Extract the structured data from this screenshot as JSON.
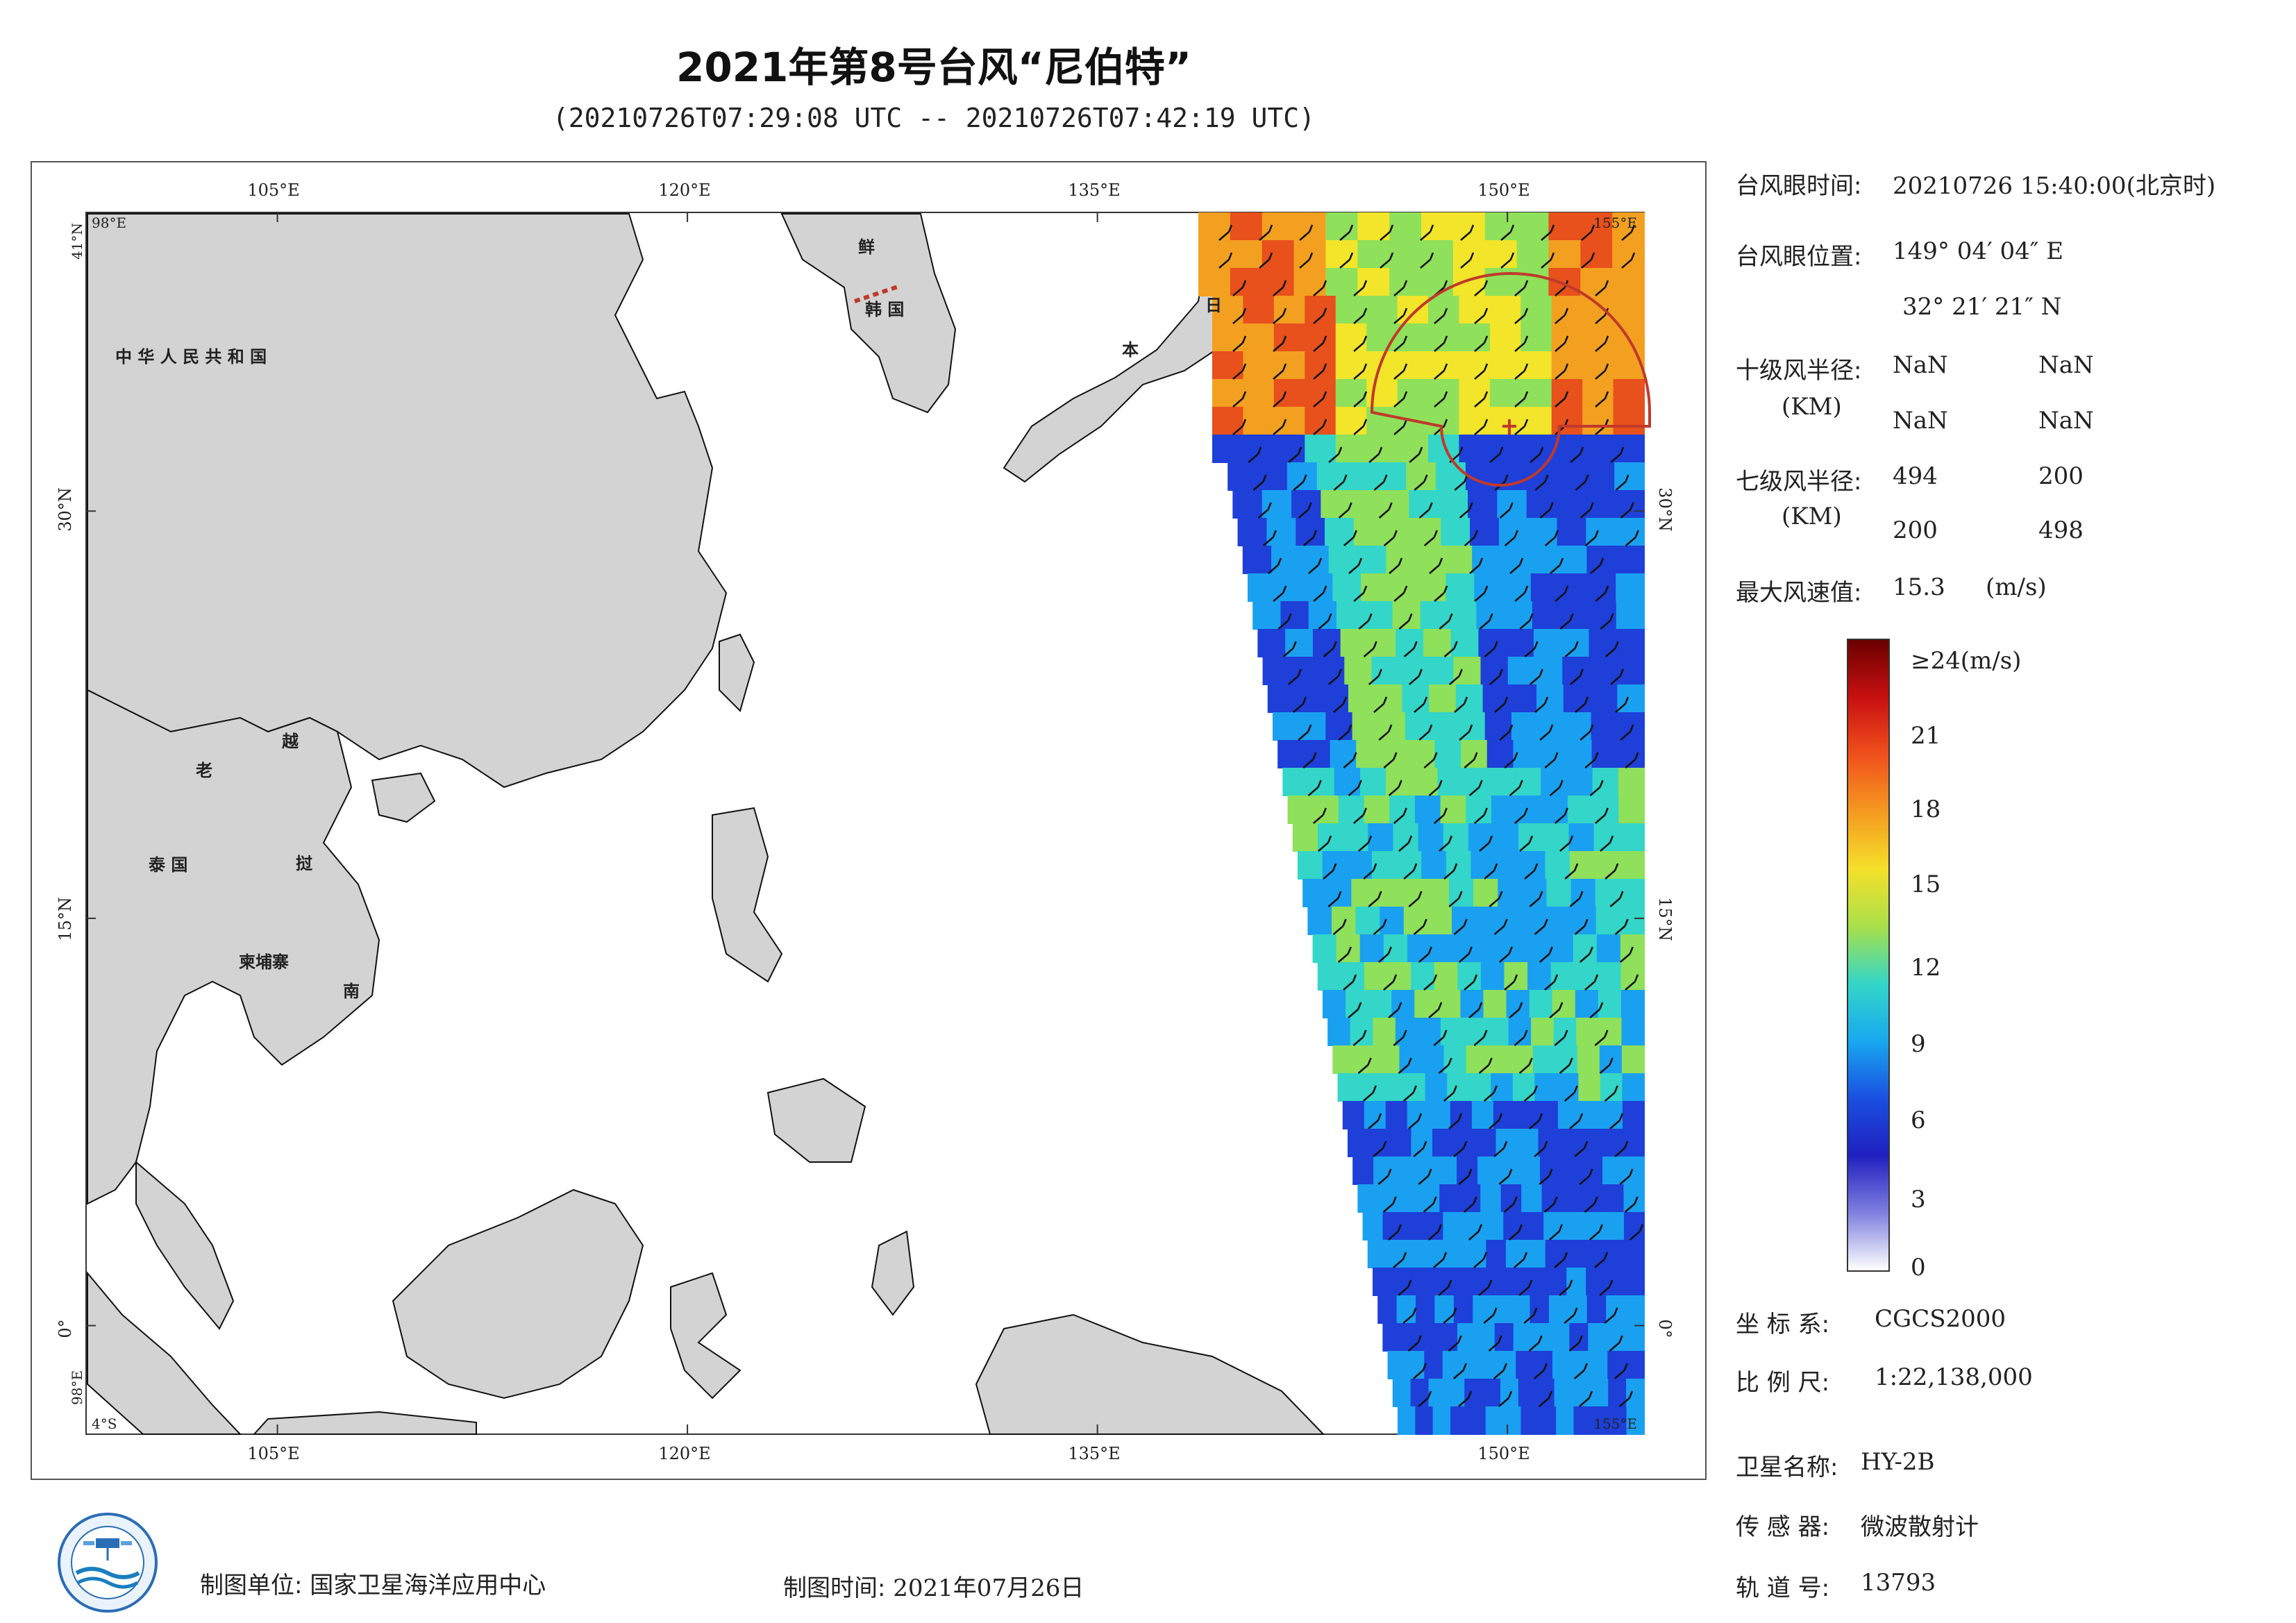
{
  "header": {
    "title": "2021年第8号台风“尼伯特”",
    "subtitle": "(20210726T07:29:08 UTC -- 20210726T07:42:19 UTC)"
  },
  "map": {
    "lon_ticks": [
      "105°E",
      "120°E",
      "135°E",
      "150°E"
    ],
    "lat_ticks": [
      "30°N",
      "15°N",
      "0°"
    ],
    "corner_labels": {
      "top_left_lon": "98°E",
      "top_left_lat": "41°N",
      "top_right_lon": "155°E",
      "bottom_left_lon": "98°E",
      "bottom_left_lat": "4°S",
      "bottom_right_lon": "155°E"
    },
    "country_labels": {
      "china": "中 华 人 民 共 和 国",
      "korea_n": "鲜",
      "korea_s": "韩 国",
      "japan_1": "日",
      "japan_2": "本",
      "laos": "老",
      "vietnam_1": "越",
      "vietnam_2": "挝",
      "vietnam_3": "南",
      "thailand": "泰 国",
      "cambodia": "柬埔寨"
    },
    "lon_range": [
      98,
      155
    ],
    "lat_range": [
      -4,
      41
    ],
    "swath_colors": [
      "#1e3fd8",
      "#1aa0f0",
      "#33d6c8",
      "#8fe05a",
      "#f2e52a",
      "#f3a020",
      "#e8501c"
    ],
    "land_color": "#d3d3d3",
    "typhoon_circle_color": "#c0392b"
  },
  "info": {
    "eye_time_label": "台风眼时间:",
    "eye_time_value": "20210726 15:40:00(北京时)",
    "eye_pos_label": "台风眼位置:",
    "eye_pos_lon": "149° 04′ 04″ E",
    "eye_pos_lat": "32° 21′ 21″ N",
    "r10_label": "十级风半径:",
    "r10_unit": "(KM)",
    "r10_values": [
      "NaN",
      "NaN",
      "NaN",
      "NaN"
    ],
    "r7_label": "七级风半径:",
    "r7_unit": "(KM)",
    "r7_values": [
      "494",
      "200",
      "200",
      "498"
    ],
    "max_wind_label": "最大风速值:",
    "max_wind_value": "15.3",
    "max_wind_unit": "(m/s)"
  },
  "colorbar": {
    "labels": [
      "≥24(m/s)",
      "21",
      "18",
      "15",
      "12",
      "9",
      "6",
      "3",
      "0"
    ],
    "colors": [
      "#6b0000",
      "#c81010",
      "#f0501c",
      "#f59a20",
      "#f5e02a",
      "#a8e04a",
      "#33d6c8",
      "#18a8f0",
      "#1a4fe0",
      "#2020c0",
      "#8080e0",
      "#ffffff"
    ]
  },
  "meta": {
    "crs_label": "坐 标 系:",
    "crs_value": "CGCS2000",
    "scale_label": "比 例 尺:",
    "scale_value": "1:22,138,000",
    "sat_label": "卫星名称:",
    "sat_value": "HY-2B",
    "sensor_label": "传 感 器:",
    "sensor_value": "微波散射计",
    "orbit_label": "轨 道 号:",
    "orbit_value": "13793"
  },
  "footer": {
    "unit_label": "制图单位:",
    "unit_value": "国家卫星海洋应用中心",
    "time_label": "制图时间:",
    "time_value": "2021年07月26日"
  }
}
